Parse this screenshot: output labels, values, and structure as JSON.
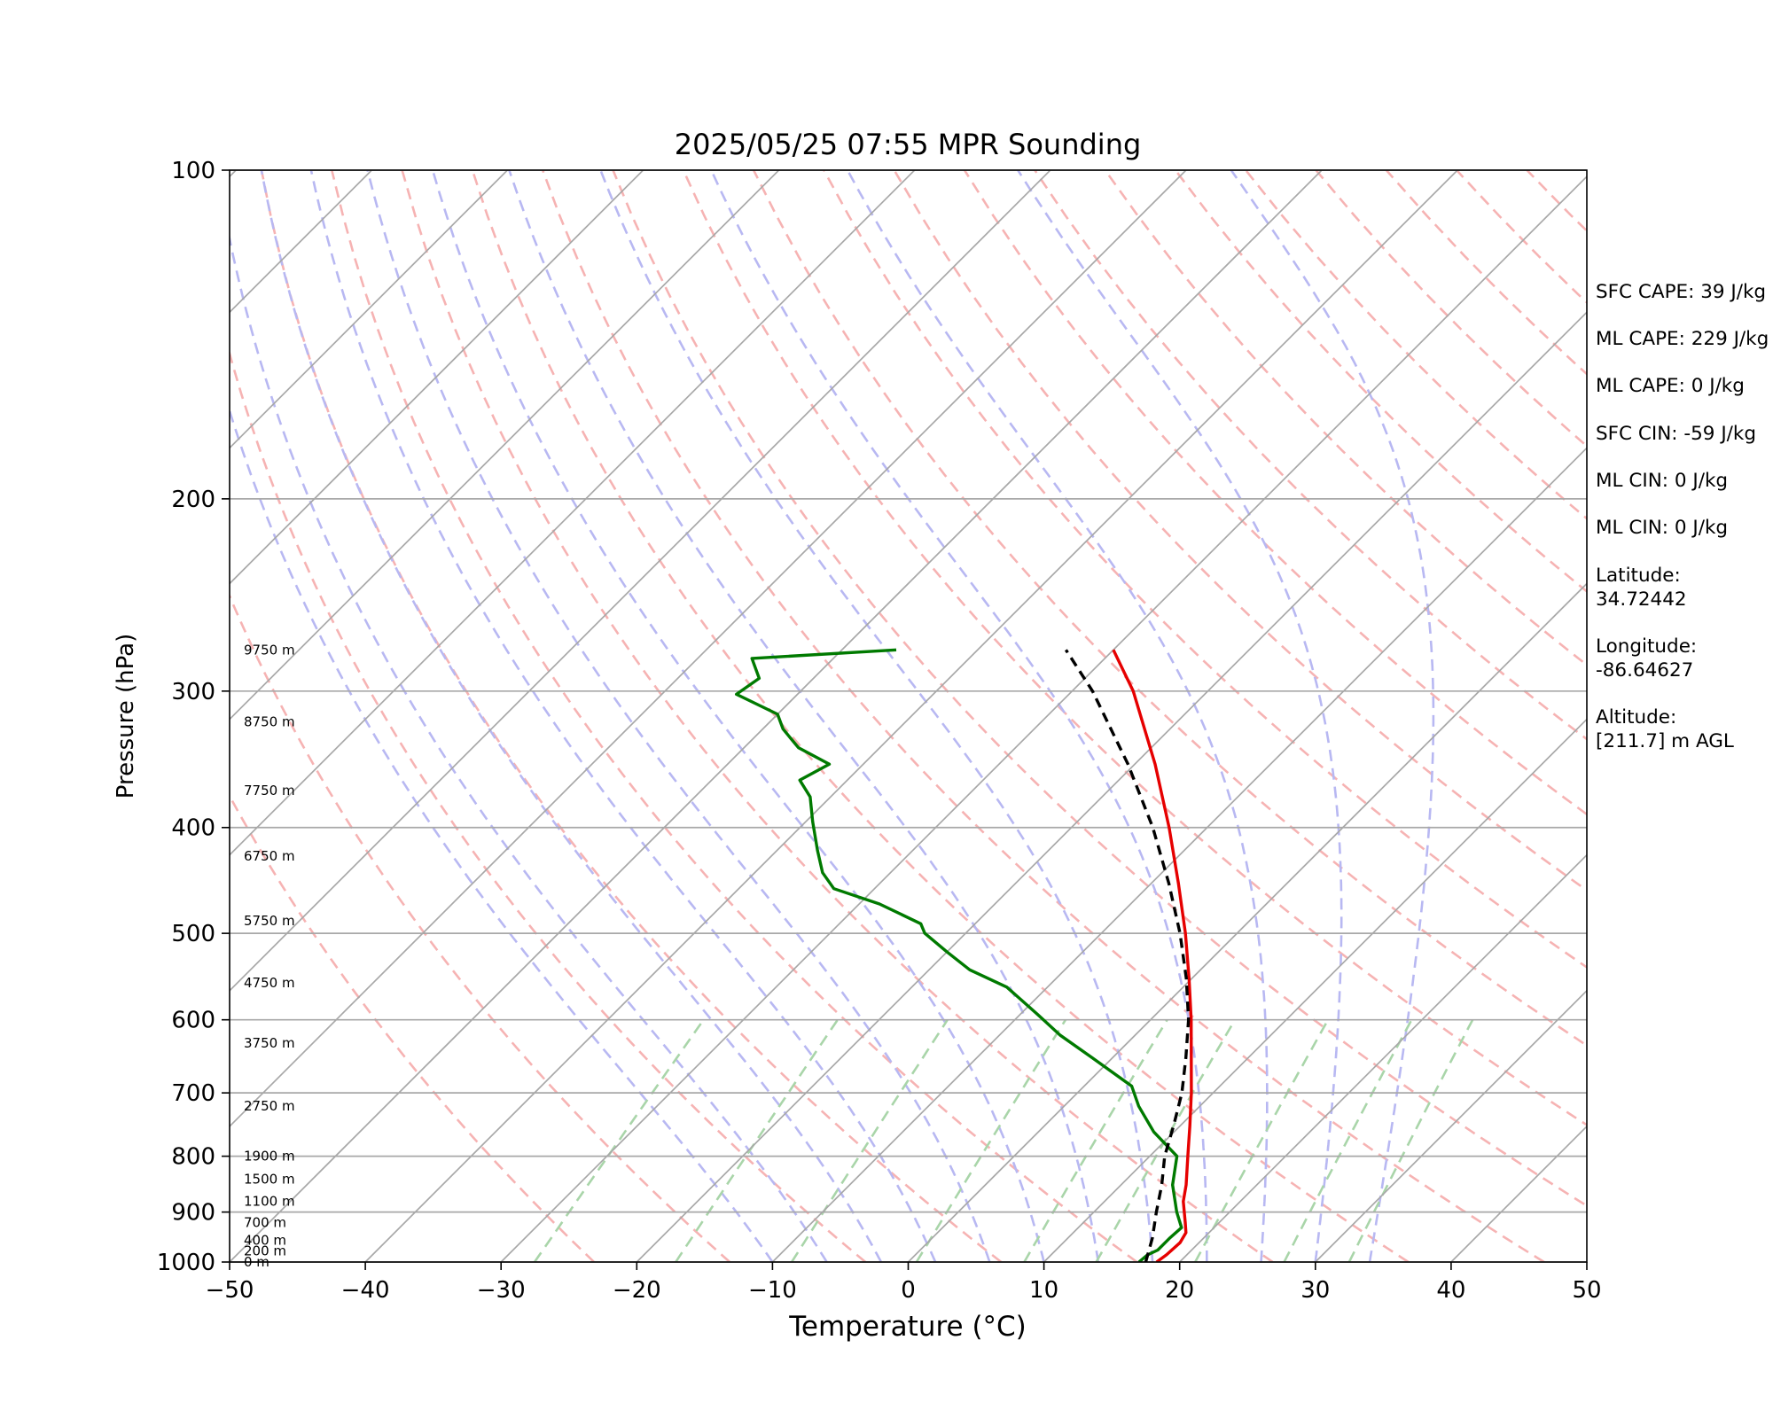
{
  "chart_data": {
    "type": "skew-t",
    "title": "2025/05/25 07:55 MPR Sounding",
    "xlabel": "Temperature (°C)",
    "ylabel": "Pressure (hPa)",
    "xlim": [
      -50,
      50
    ],
    "ylim": [
      1000,
      100
    ],
    "x_ticks": [
      -50,
      -40,
      -30,
      -20,
      -10,
      0,
      10,
      20,
      30,
      40,
      50
    ],
    "x_tick_labels": [
      "−50",
      "−40",
      "−30",
      "−20",
      "−10",
      "0",
      "10",
      "20",
      "30",
      "40",
      "50"
    ],
    "y_ticks": [
      100,
      200,
      300,
      400,
      500,
      600,
      700,
      800,
      900,
      1000
    ],
    "y_tick_labels": [
      "100",
      "200",
      "300",
      "400",
      "500",
      "600",
      "700",
      "800",
      "900",
      "1000"
    ],
    "grid": true,
    "background_lines": {
      "isotherms_color": "#a8a8a8",
      "dry_adiabats_color": "#f6b3b3",
      "moist_adiabats_color": "#b8b8f2",
      "mixing_ratio_color": "#a9d5a9"
    },
    "series": [
      {
        "name": "Temperature",
        "color": "#e60000",
        "points": [
          {
            "p": 1000,
            "t": 18.3
          },
          {
            "p": 985,
            "t": 18.5
          },
          {
            "p": 960,
            "t": 18.6
          },
          {
            "p": 940,
            "t": 18.3
          },
          {
            "p": 920,
            "t": 17.5
          },
          {
            "p": 880,
            "t": 15.8
          },
          {
            "p": 850,
            "t": 14.8
          },
          {
            "p": 800,
            "t": 12.8
          },
          {
            "p": 750,
            "t": 10.7
          },
          {
            "p": 700,
            "t": 8.4
          },
          {
            "p": 650,
            "t": 5.8
          },
          {
            "p": 600,
            "t": 3.0
          },
          {
            "p": 550,
            "t": -0.2
          },
          {
            "p": 500,
            "t": -3.8
          },
          {
            "p": 450,
            "t": -8.0
          },
          {
            "p": 400,
            "t": -12.8
          },
          {
            "p": 350,
            "t": -18.5
          },
          {
            "p": 300,
            "t": -25.5
          },
          {
            "p": 275,
            "t": -30.0
          }
        ]
      },
      {
        "name": "Dewpoint",
        "color": "#007a00",
        "points": [
          {
            "p": 1000,
            "t": 17.0
          },
          {
            "p": 985,
            "t": 17.1
          },
          {
            "p": 975,
            "t": 17.5
          },
          {
            "p": 950,
            "t": 17.5
          },
          {
            "p": 930,
            "t": 17.6
          },
          {
            "p": 900,
            "t": 16.1
          },
          {
            "p": 850,
            "t": 13.8
          },
          {
            "p": 800,
            "t": 12.0
          },
          {
            "p": 760,
            "t": 8.5
          },
          {
            "p": 720,
            "t": 5.5
          },
          {
            "p": 690,
            "t": 3.5
          },
          {
            "p": 650,
            "t": -1.5
          },
          {
            "p": 620,
            "t": -5.5
          },
          {
            "p": 595,
            "t": -8.5
          },
          {
            "p": 560,
            "t": -13.0
          },
          {
            "p": 540,
            "t": -17.0
          },
          {
            "p": 520,
            "t": -20.0
          },
          {
            "p": 500,
            "t": -23.0
          },
          {
            "p": 490,
            "t": -24.0
          },
          {
            "p": 470,
            "t": -28.5
          },
          {
            "p": 455,
            "t": -33.0
          },
          {
            "p": 440,
            "t": -35.0
          },
          {
            "p": 420,
            "t": -37.0
          },
          {
            "p": 395,
            "t": -39.5
          },
          {
            "p": 375,
            "t": -41.5
          },
          {
            "p": 362,
            "t": -43.5
          },
          {
            "p": 350,
            "t": -42.5
          },
          {
            "p": 338,
            "t": -46.0
          },
          {
            "p": 325,
            "t": -48.5
          },
          {
            "p": 315,
            "t": -50.0
          },
          {
            "p": 302,
            "t": -54.5
          },
          {
            "p": 292,
            "t": -54.0
          },
          {
            "p": 280,
            "t": -56.0
          },
          {
            "p": 275,
            "t": -46.0
          }
        ]
      },
      {
        "name": "Parcel Profile",
        "color": "#000000",
        "style": "dashed",
        "points": [
          {
            "p": 1000,
            "t": 17.5
          },
          {
            "p": 950,
            "t": 16.2
          },
          {
            "p": 900,
            "t": 14.6
          },
          {
            "p": 850,
            "t": 13.0
          },
          {
            "p": 800,
            "t": 11.1
          },
          {
            "p": 750,
            "t": 9.5
          },
          {
            "p": 700,
            "t": 7.7
          },
          {
            "p": 650,
            "t": 5.4
          },
          {
            "p": 600,
            "t": 2.8
          },
          {
            "p": 550,
            "t": -0.4
          },
          {
            "p": 500,
            "t": -4.2
          },
          {
            "p": 450,
            "t": -8.7
          },
          {
            "p": 400,
            "t": -14.0
          },
          {
            "p": 350,
            "t": -20.5
          },
          {
            "p": 300,
            "t": -28.5
          },
          {
            "p": 275,
            "t": -33.5
          }
        ]
      }
    ],
    "height_labels": [
      {
        "p": 1000,
        "text": "0 m"
      },
      {
        "p": 977,
        "text": "200 m"
      },
      {
        "p": 955,
        "text": "400 m"
      },
      {
        "p": 920,
        "text": "700 m"
      },
      {
        "p": 880,
        "text": "1100 m"
      },
      {
        "p": 840,
        "text": "1500 m"
      },
      {
        "p": 800,
        "text": "1900 m"
      },
      {
        "p": 720,
        "text": "2750 m"
      },
      {
        "p": 630,
        "text": "3750 m"
      },
      {
        "p": 555,
        "text": "4750 m"
      },
      {
        "p": 487,
        "text": "5750 m"
      },
      {
        "p": 425,
        "text": "6750 m"
      },
      {
        "p": 370,
        "text": "7750 m"
      },
      {
        "p": 320,
        "text": "8750 m"
      },
      {
        "p": 275,
        "text": "9750 m"
      }
    ]
  },
  "info_panel": {
    "sfc_cape": "SFC CAPE: 39 J/kg",
    "ml_cape_1": "ML CAPE: 229 J/kg",
    "ml_cape_2": "ML CAPE: 0 J/kg",
    "sfc_cin": "SFC CIN: -59 J/kg",
    "ml_cin_1": "ML CIN: 0 J/kg",
    "ml_cin_2": "ML CIN: 0 J/kg",
    "latitude": "Latitude:\n34.72442",
    "longitude": "Longitude:\n-86.64627",
    "altitude": "Altitude:\n[211.7] m AGL"
  }
}
